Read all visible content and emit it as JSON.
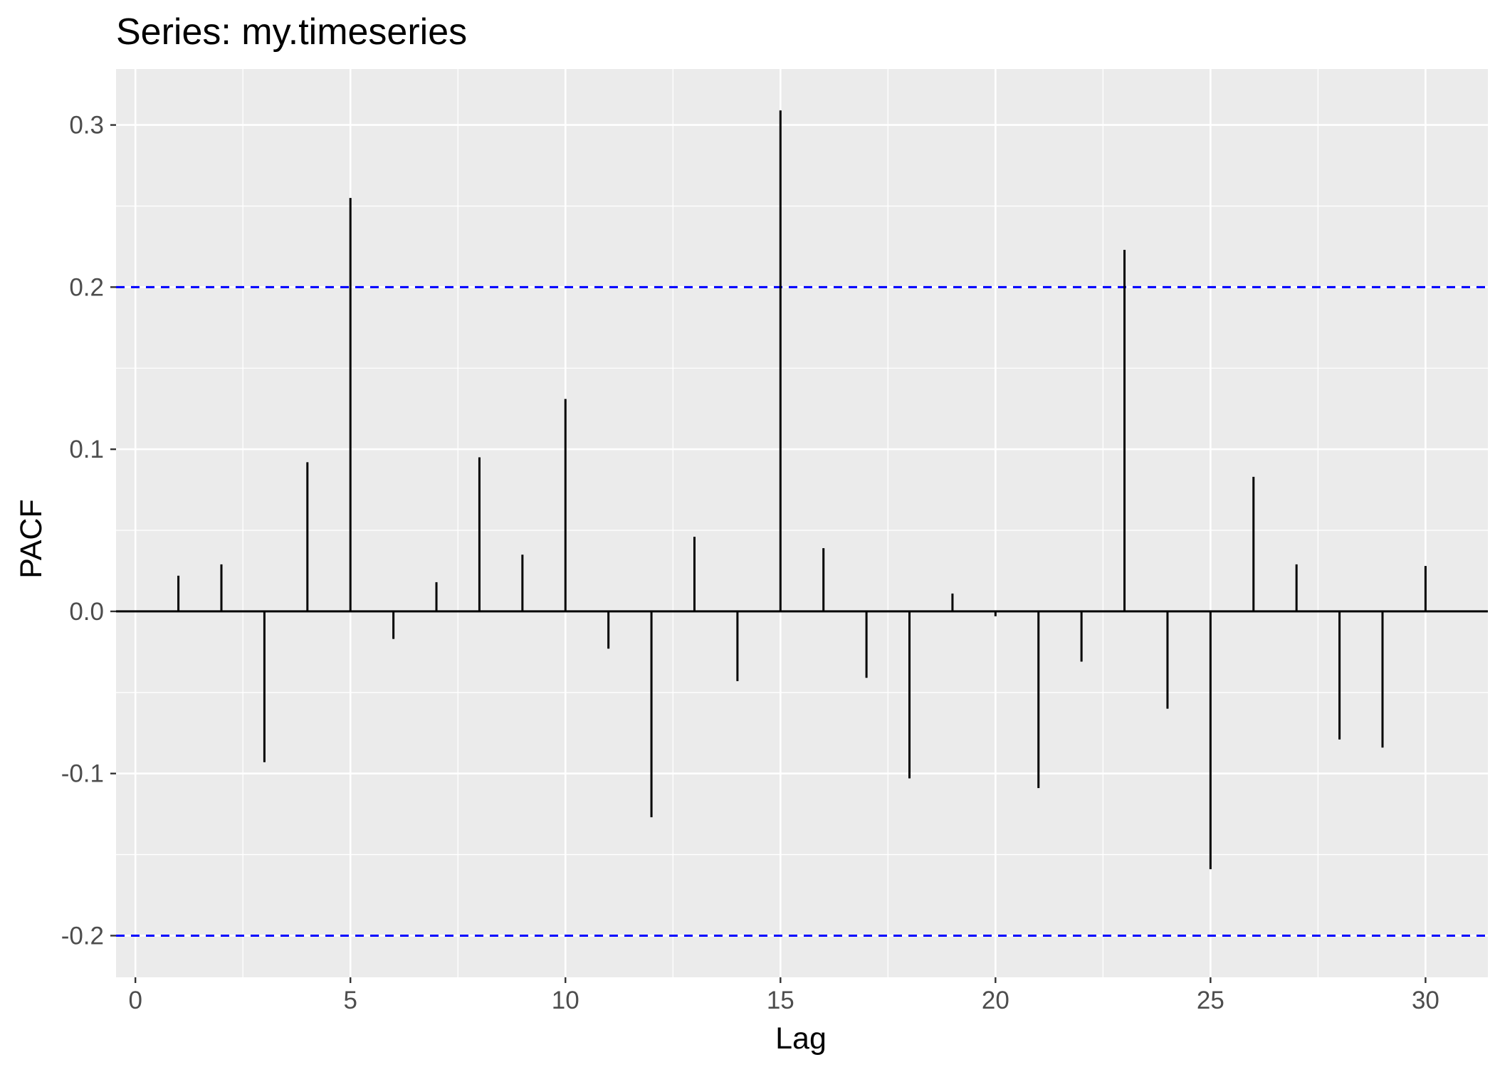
{
  "chart_data": {
    "type": "bar",
    "subtype": "pacf-lollipop",
    "title": "Series: my.timeseries",
    "xlabel": "Lag",
    "ylabel": "PACF",
    "x": [
      1,
      2,
      3,
      4,
      5,
      6,
      7,
      8,
      9,
      10,
      11,
      12,
      13,
      14,
      15,
      16,
      17,
      18,
      19,
      20,
      21,
      22,
      23,
      24,
      25,
      26,
      27,
      28,
      29,
      30
    ],
    "values": [
      0.022,
      0.029,
      -0.093,
      0.092,
      0.255,
      -0.017,
      0.018,
      0.095,
      0.035,
      0.131,
      -0.023,
      -0.127,
      0.046,
      -0.043,
      0.309,
      0.039,
      -0.041,
      -0.103,
      0.011,
      -0.003,
      -0.109,
      -0.031,
      0.223,
      -0.06,
      -0.159,
      0.083,
      0.029,
      -0.079,
      -0.084,
      0.028
    ],
    "xlim": [
      -0.45,
      31.45
    ],
    "ylim": [
      -0.2257,
      0.3345
    ],
    "x_ticks": [
      "0",
      "5",
      "10",
      "15",
      "20",
      "25",
      "30"
    ],
    "y_ticks": [
      "-0.2",
      "-0.1",
      "0.0",
      "0.1",
      "0.2",
      "0.3"
    ],
    "confidence_bounds": [
      0.2,
      -0.2
    ],
    "zero_line": 0,
    "grid": true,
    "colors": {
      "panel_background": "#ebebeb",
      "grid": "#ffffff",
      "bars": "#000000",
      "confidence_line": "#0000ff",
      "tick_label": "#4d4d4d",
      "axis_tick": "#333333"
    }
  }
}
